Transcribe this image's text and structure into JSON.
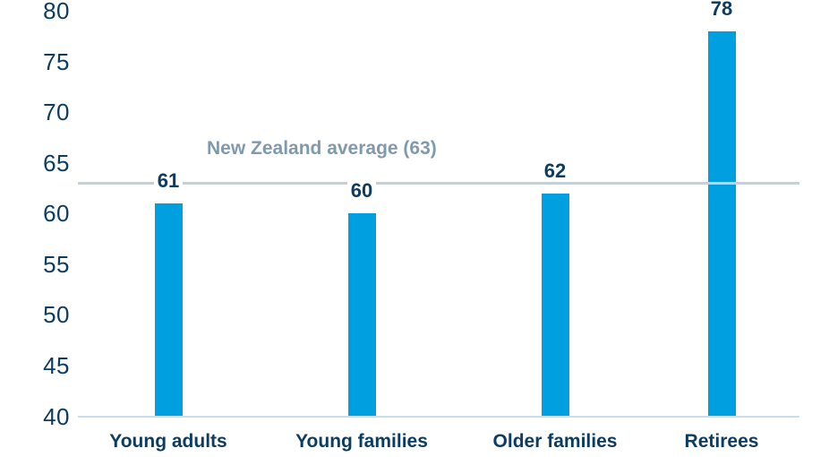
{
  "chart_data": {
    "type": "bar",
    "categories": [
      "Young adults",
      "Young families",
      "Older families",
      "Retirees"
    ],
    "values": [
      61,
      60,
      62,
      78
    ],
    "title": "",
    "xlabel": "",
    "ylabel": "",
    "ylim": [
      40,
      80
    ],
    "yticks": [
      40,
      45,
      50,
      55,
      60,
      65,
      70,
      75,
      80
    ],
    "grid": false,
    "legend": "none",
    "data_labels": true,
    "reference_line": {
      "value": 63,
      "label": "New Zealand average (63)"
    },
    "colors": {
      "bar": "#009fe0",
      "value_label_text": "#0d3c63",
      "category_label_text": "#0d3c63",
      "tick_label_text": "#0d3c63",
      "reference_line": "#bfd2df",
      "reference_label_text": "#7f99ad",
      "baseline": "#cbdeeb",
      "background": "#ffffff"
    }
  }
}
